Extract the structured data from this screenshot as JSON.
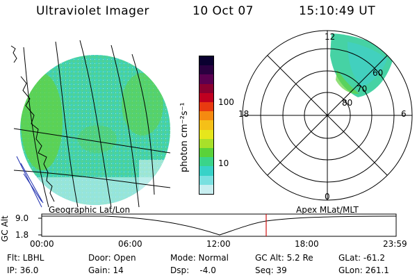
{
  "header": {
    "title": "Ultraviolet Imager",
    "date": "10 Oct 07",
    "time": "15:10:49 UT"
  },
  "geo_panel": {
    "label": "Geographic Lat/Lon"
  },
  "colorbar": {
    "unit_label": "photon cm⁻²s⁻¹",
    "ticks": [
      "100",
      "10"
    ],
    "colors": [
      "#0a0030",
      "#2a0040",
      "#5a0050",
      "#8a0030",
      "#c00020",
      "#e83a10",
      "#f58a10",
      "#f5c018",
      "#e6e61c",
      "#a8e02a",
      "#5ad23a",
      "#3ad48a",
      "#38d2c8",
      "#7ae0e0",
      "#c8eef0"
    ]
  },
  "polar_panel": {
    "label": "Apex MLat/MLT",
    "mlt_labels": {
      "top": "12",
      "right": "6",
      "bottom": "0",
      "left": "18"
    },
    "lat_labels": [
      "60",
      "70",
      "80"
    ]
  },
  "timeline": {
    "ylabel": "GC Alt",
    "yticks": [
      "9.0",
      "1.8"
    ],
    "xticks": [
      "00:00",
      "06:00",
      "12:00",
      "18:00",
      "23:59"
    ],
    "current_marker_color": "#d01010"
  },
  "info": {
    "flt": "Flt: LBHL",
    "ip": "IP: 36.0",
    "door": "Door: Open",
    "gain": "Gain: 14",
    "mode": "Mode: Normal",
    "dsp": "Dsp:    -4.0",
    "gcalt": "GC Alt: 5.2 Re",
    "seq": "Seq: 39",
    "glat": "GLat: -61.2",
    "glon": "GLon: 261.1"
  }
}
